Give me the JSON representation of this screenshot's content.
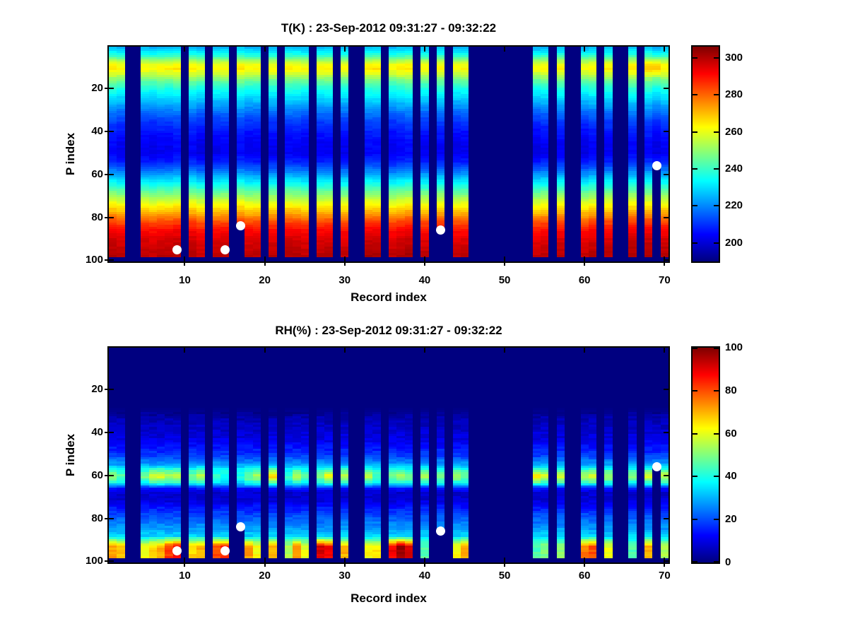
{
  "figure": {
    "background": "#ffffff",
    "plot_background_missing": "#000080",
    "axis_color": "#000000",
    "marker_color": "#ffffff"
  },
  "chart_data": [
    {
      "type": "heatmap",
      "title": "T(K) : 23-Sep-2012 09:31:27 - 09:32:22",
      "xlabel": "Record index",
      "ylabel": "P index",
      "x_ticks": [
        10,
        20,
        30,
        40,
        50,
        60,
        70
      ],
      "y_ticks": [
        20,
        40,
        60,
        80,
        100
      ],
      "x_range": [
        0.5,
        70.5
      ],
      "y_range": [
        0.5,
        100.5
      ],
      "y_axis_reversed": true,
      "colormap": "jet",
      "color_range": [
        190,
        306
      ],
      "colorbar_ticks": [
        200,
        220,
        240,
        260,
        280,
        300
      ],
      "n_records": 70,
      "n_levels": 100,
      "max_data_level": 98,
      "missing_records": [
        3,
        4,
        10,
        13,
        16,
        20,
        22,
        26,
        29,
        31,
        32,
        35,
        39,
        41,
        43,
        46,
        47,
        48,
        49,
        50,
        51,
        52,
        53,
        56,
        58,
        59,
        62,
        64,
        65,
        67
      ],
      "partial_record_last_level": {
        "17": 84,
        "42": 86,
        "69": 56
      },
      "markers": [
        {
          "record": 9,
          "p": 95
        },
        {
          "record": 15,
          "p": 95
        },
        {
          "record": 17,
          "p": 84
        },
        {
          "record": 42,
          "p": 86
        },
        {
          "record": 69,
          "p": 56
        }
      ],
      "profile_points": [
        [
          1,
          226
        ],
        [
          3,
          232
        ],
        [
          5,
          240
        ],
        [
          7,
          252
        ],
        [
          9,
          261
        ],
        [
          11,
          264
        ],
        [
          13,
          258
        ],
        [
          15,
          250
        ],
        [
          17,
          244
        ],
        [
          20,
          237
        ],
        [
          24,
          230
        ],
        [
          28,
          223
        ],
        [
          32,
          216
        ],
        [
          36,
          211
        ],
        [
          40,
          207
        ],
        [
          45,
          204
        ],
        [
          50,
          203
        ],
        [
          54,
          208
        ],
        [
          58,
          217
        ],
        [
          62,
          228
        ],
        [
          66,
          240
        ],
        [
          70,
          251
        ],
        [
          74,
          262
        ],
        [
          78,
          272
        ],
        [
          82,
          283
        ],
        [
          86,
          291
        ],
        [
          90,
          296
        ],
        [
          94,
          298
        ],
        [
          98,
          300
        ]
      ],
      "record_warm_top_offset": {
        "68": 5,
        "69": 8
      }
    },
    {
      "type": "heatmap",
      "title": "RH(%) : 23-Sep-2012 09:31:27 - 09:32:22",
      "xlabel": "Record index",
      "ylabel": "P index",
      "x_ticks": [
        10,
        20,
        30,
        40,
        50,
        60,
        70
      ],
      "y_ticks": [
        20,
        40,
        60,
        80,
        100
      ],
      "x_range": [
        0.5,
        70.5
      ],
      "y_range": [
        0.5,
        100.5
      ],
      "y_axis_reversed": true,
      "colormap": "jet",
      "color_range": [
        0,
        100
      ],
      "colorbar_ticks": [
        0,
        20,
        40,
        60,
        80,
        100
      ],
      "n_records": 70,
      "n_levels": 100,
      "max_data_level": 98,
      "missing_records": [
        3,
        4,
        10,
        13,
        16,
        20,
        22,
        26,
        29,
        31,
        32,
        35,
        39,
        41,
        43,
        46,
        47,
        48,
        49,
        50,
        51,
        52,
        53,
        56,
        58,
        59,
        62,
        64,
        65,
        67
      ],
      "partial_record_last_level": {
        "17": 84,
        "42": 86,
        "69": 56
      },
      "markers": [
        {
          "record": 9,
          "p": 95
        },
        {
          "record": 15,
          "p": 95
        },
        {
          "record": 17,
          "p": 84
        },
        {
          "record": 42,
          "p": 86
        },
        {
          "record": 69,
          "p": 56
        }
      ],
      "base_profile_points": [
        [
          1,
          0
        ],
        [
          28,
          0
        ],
        [
          31,
          2
        ],
        [
          34,
          5
        ],
        [
          38,
          7
        ],
        [
          43,
          10
        ],
        [
          47,
          14
        ],
        [
          51,
          19
        ],
        [
          54,
          26
        ],
        [
          56,
          31
        ],
        [
          58,
          35
        ],
        [
          60,
          36
        ],
        [
          63,
          30
        ],
        [
          66,
          14
        ],
        [
          68,
          8
        ],
        [
          71,
          8
        ],
        [
          74,
          13
        ],
        [
          78,
          19
        ],
        [
          82,
          24
        ],
        [
          85,
          28
        ],
        [
          88,
          33
        ],
        [
          90,
          36
        ],
        [
          93,
          40
        ],
        [
          98,
          42
        ]
      ],
      "moist_band_center_level": 60.5,
      "surface_moist_start_level": 89,
      "record_band_and_bottom_rh": {
        "1": [
          52,
          72
        ],
        "2": [
          46,
          68
        ],
        "5": [
          50,
          62
        ],
        "6": [
          58,
          66
        ],
        "7": [
          60,
          70
        ],
        "8": [
          55,
          82
        ],
        "9": [
          58,
          88
        ],
        "11": [
          50,
          66
        ],
        "12": [
          58,
          70
        ],
        "14": [
          42,
          80
        ],
        "15": [
          40,
          84
        ],
        "17": [
          40,
          0
        ],
        "18": [
          50,
          72
        ],
        "19": [
          55,
          62
        ],
        "21": [
          70,
          70
        ],
        "23": [
          42,
          55
        ],
        "24": [
          56,
          74
        ],
        "25": [
          46,
          60
        ],
        "27": [
          50,
          92
        ],
        "28": [
          64,
          88
        ],
        "30": [
          58,
          70
        ],
        "33": [
          58,
          62
        ],
        "34": [
          45,
          64
        ],
        "36": [
          50,
          88
        ],
        "37": [
          54,
          97
        ],
        "38": [
          50,
          92
        ],
        "40": [
          55,
          45
        ],
        "42": [
          50,
          0
        ],
        "44": [
          55,
          62
        ],
        "45": [
          50,
          72
        ],
        "54": [
          66,
          45
        ],
        "55": [
          60,
          50
        ],
        "57": [
          60,
          52
        ],
        "60": [
          55,
          76
        ],
        "61": [
          60,
          80
        ],
        "63": [
          55,
          60
        ],
        "66": [
          50,
          45
        ],
        "68": [
          60,
          70
        ],
        "69": [
          45,
          0
        ],
        "70": [
          58,
          55
        ]
      }
    }
  ]
}
